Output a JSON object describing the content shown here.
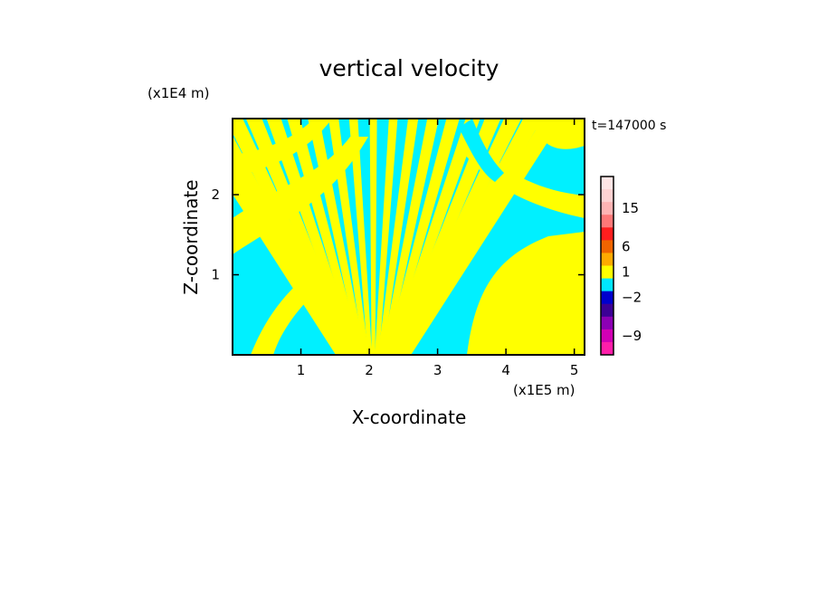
{
  "chart_data": {
    "type": "heatmap",
    "title": "vertical velocity",
    "xlabel": "X-coordinate",
    "ylabel": "Z-coordinate",
    "x_unit": "(x1E5 m)",
    "y_unit": "(x1E4 m)",
    "time_label": "t=147000 s",
    "xlim": [
      0,
      5.15
    ],
    "ylim": [
      0,
      2.95
    ],
    "x_ticks": [
      {
        "value": 1,
        "label": "1"
      },
      {
        "value": 2,
        "label": "2"
      },
      {
        "value": 3,
        "label": "3"
      },
      {
        "value": 4,
        "label": "4"
      },
      {
        "value": 5,
        "label": "5"
      }
    ],
    "y_ticks": [
      {
        "value": 1,
        "label": "1"
      },
      {
        "value": 2,
        "label": "2"
      }
    ],
    "colorbar": {
      "levels": [
        {
          "value": 21,
          "color": "#ffe6e6"
        },
        {
          "value": 18,
          "color": "#ffd2d2"
        },
        {
          "value": 15,
          "color": "#ffb4b4"
        },
        {
          "value": 12,
          "color": "#ff7878"
        },
        {
          "value": 9,
          "color": "#ff1e1e"
        },
        {
          "value": 6,
          "color": "#f06400"
        },
        {
          "value": 3,
          "color": "#ffaa00"
        },
        {
          "value": 1,
          "color": "#ffff00"
        },
        {
          "value": 0,
          "color": "#00e6ff"
        },
        {
          "value": -2,
          "color": "#0000cd"
        },
        {
          "value": -3,
          "color": "#3c0096"
        },
        {
          "value": -6,
          "color": "#8c00b4"
        },
        {
          "value": -9,
          "color": "#d200b4"
        },
        {
          "value": -12,
          "color": "#ff1eaa"
        }
      ],
      "tick_labels": [
        "15",
        "6",
        "1",
        "−2",
        "−9"
      ]
    },
    "field_colors": {
      "positive": "#ffff00",
      "negative": "#00f0ff"
    }
  }
}
